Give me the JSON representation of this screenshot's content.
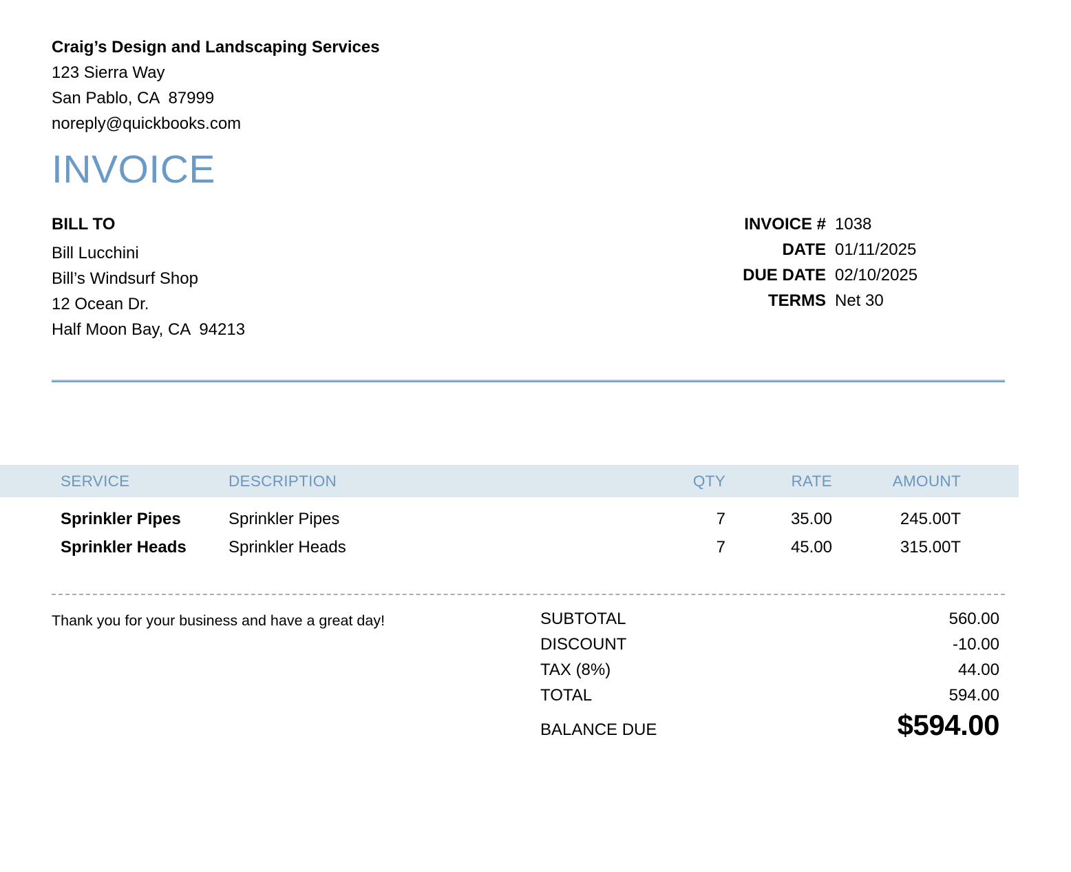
{
  "company": {
    "name": "Craig’s Design and Landscaping Services",
    "address_line1": "123 Sierra Way",
    "address_line2": "San Pablo, CA  87999",
    "email": "noreply@quickbooks.com"
  },
  "document": {
    "title": "INVOICE"
  },
  "bill_to": {
    "label": "BILL TO",
    "line1": "Bill Lucchini",
    "line2": "Bill’s Windsurf Shop",
    "line3": "12 Ocean Dr.",
    "line4": "Half Moon Bay, CA  94213"
  },
  "meta": {
    "rows": [
      {
        "label": "INVOICE #",
        "value": "1038"
      },
      {
        "label": "DATE",
        "value": "01/11/2025"
      },
      {
        "label": "DUE DATE",
        "value": "02/10/2025"
      },
      {
        "label": "TERMS",
        "value": "Net 30"
      }
    ]
  },
  "line_items": {
    "headers": {
      "service": "SERVICE",
      "description": "DESCRIPTION",
      "qty": "QTY",
      "rate": "RATE",
      "amount": "AMOUNT"
    },
    "rows": [
      {
        "service": "Sprinkler Pipes",
        "description": "Sprinkler Pipes",
        "qty": "7",
        "rate": "35.00",
        "amount": "245.00T"
      },
      {
        "service": "Sprinkler Heads",
        "description": "Sprinkler Heads",
        "qty": "7",
        "rate": "45.00",
        "amount": "315.00T"
      }
    ]
  },
  "footer": {
    "message": "Thank you for your business and have a great day!",
    "totals": [
      {
        "label": "SUBTOTAL",
        "value": "560.00"
      },
      {
        "label": "DISCOUNT",
        "value": "-10.00"
      },
      {
        "label": "TAX (8%)",
        "value": "44.00"
      },
      {
        "label": "TOTAL",
        "value": "594.00"
      }
    ],
    "balance_due": {
      "label": "BALANCE DUE",
      "value": "$594.00"
    }
  },
  "colors": {
    "accent": "#6b9ac6",
    "band": "#dde8ef",
    "band_text": "#6b97bf",
    "divider": "#74a0c8",
    "dashed": "#ababab"
  }
}
